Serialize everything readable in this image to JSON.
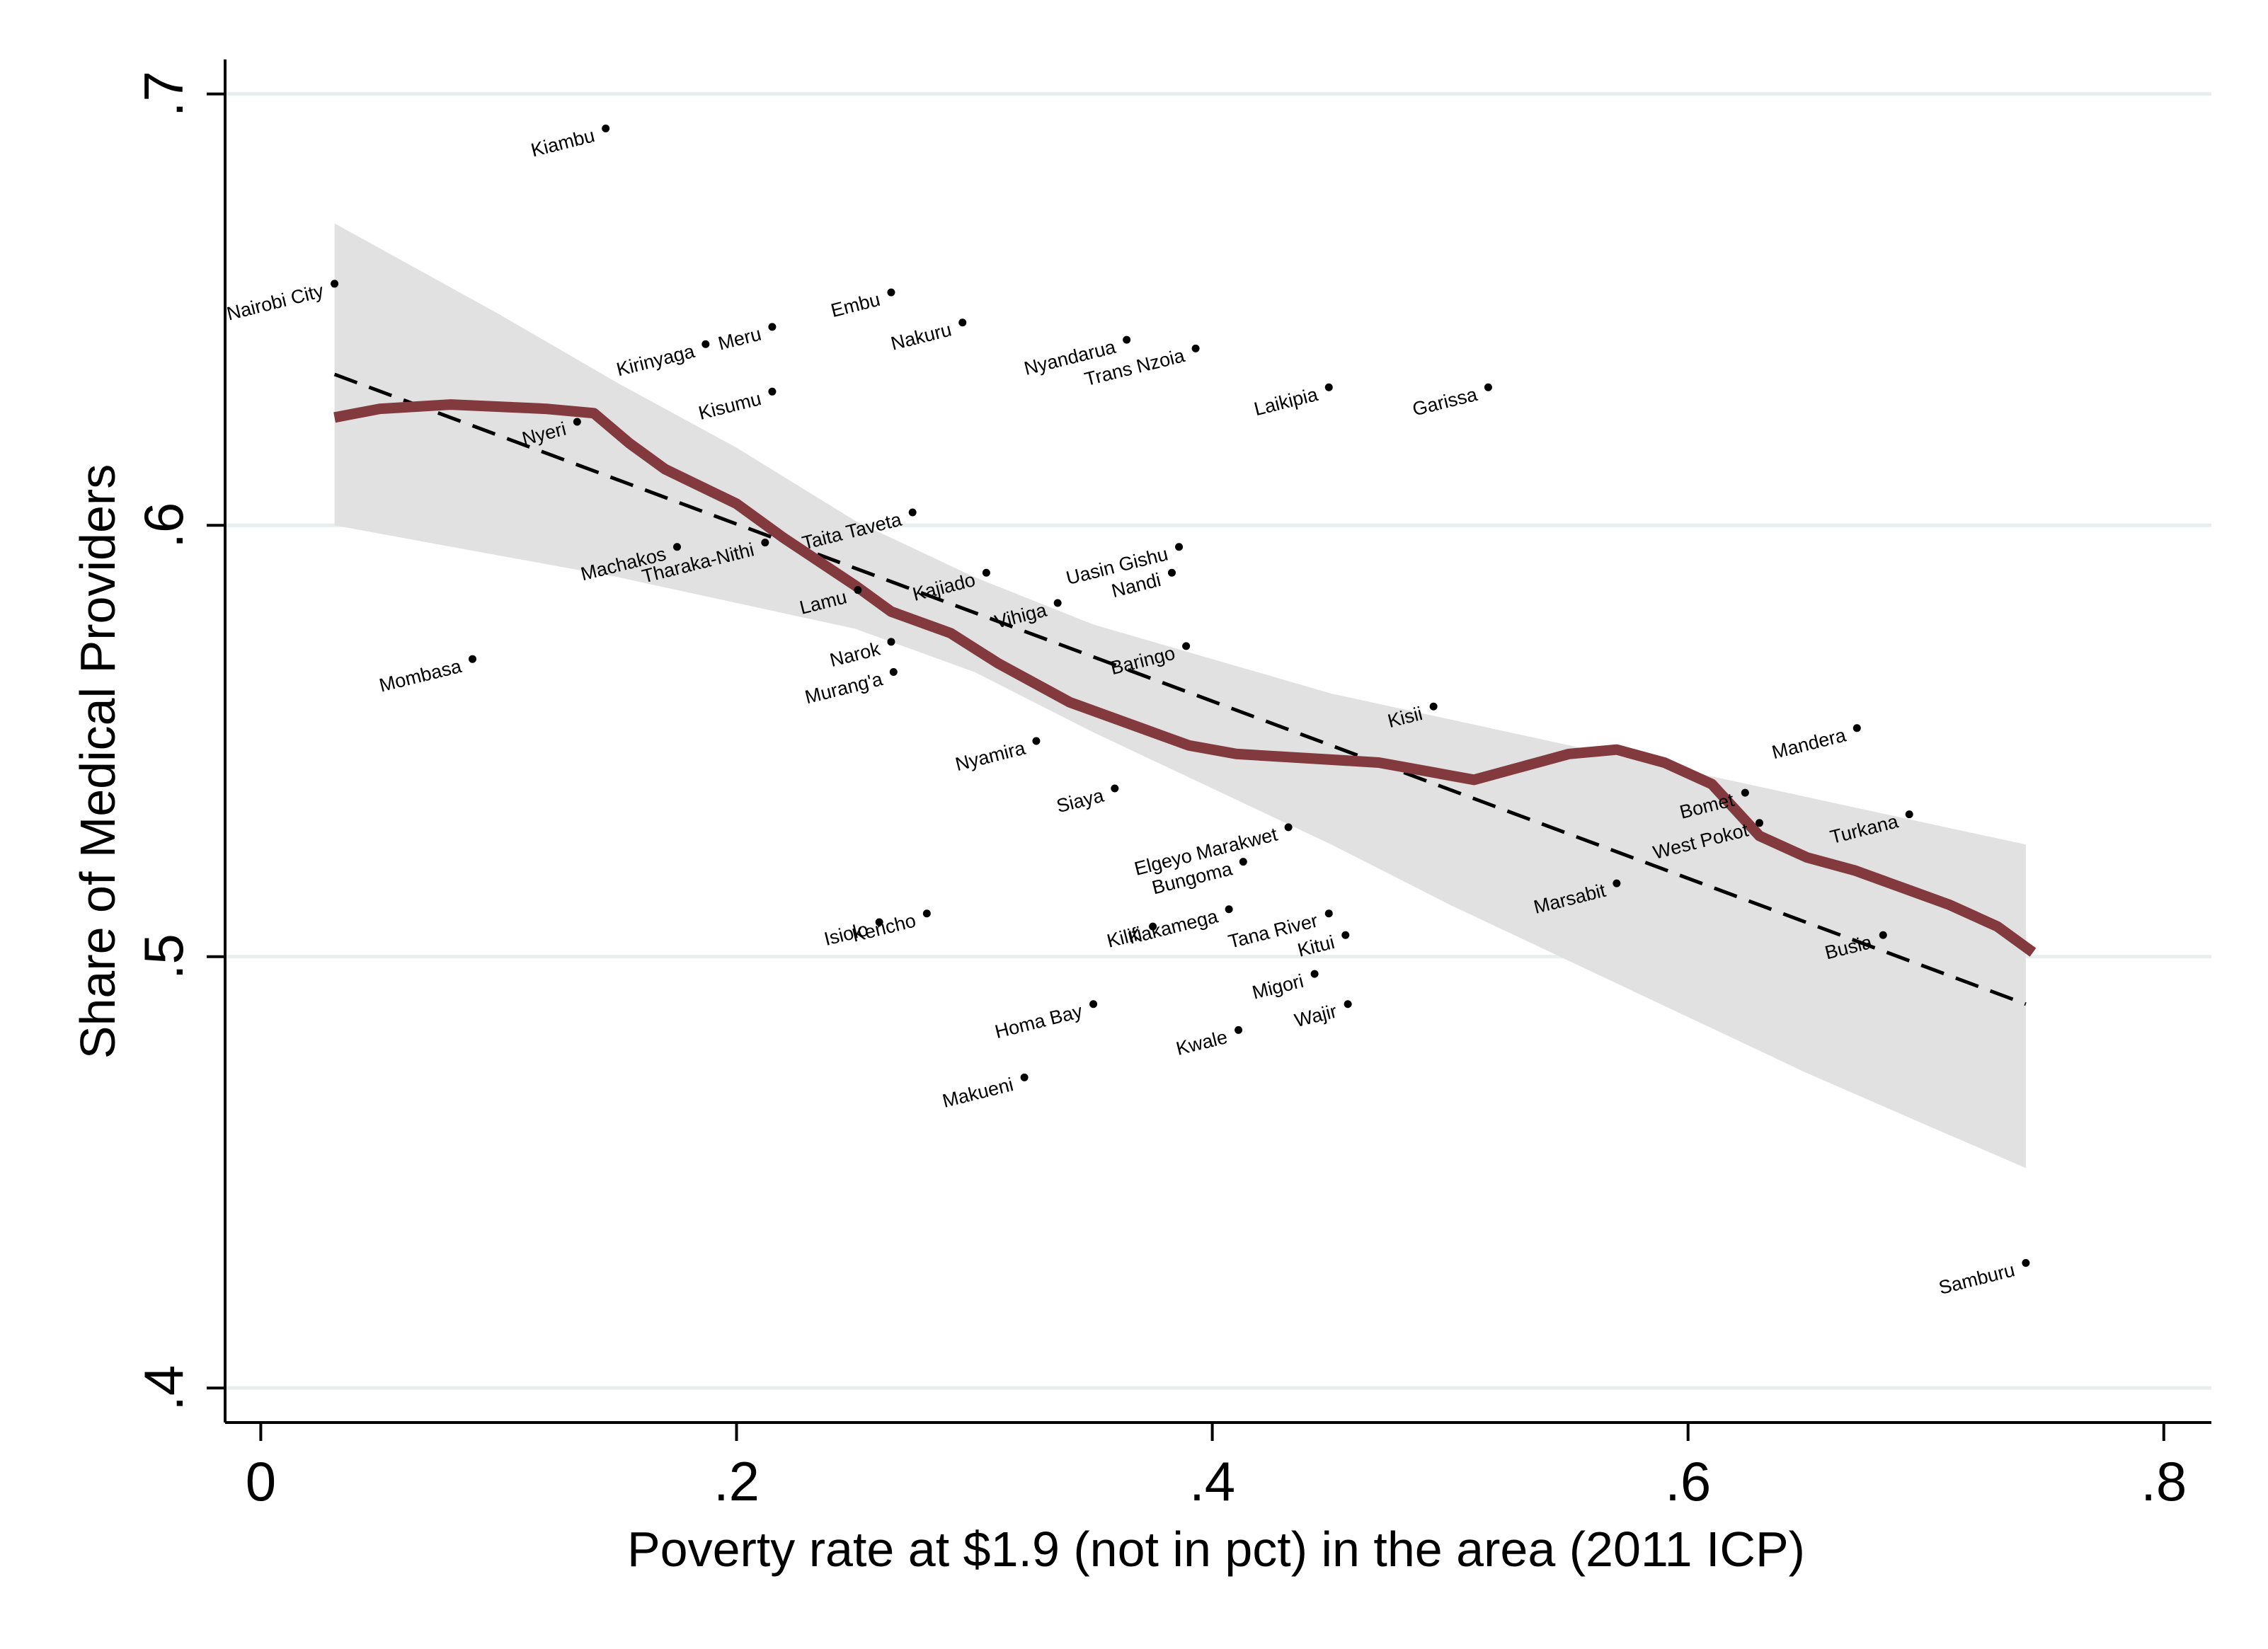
{
  "chart_data": {
    "type": "scatter",
    "xlabel": "Poverty rate at $1.9 (not in pct) in the area (2011 ICP)",
    "ylabel": "Share of Medical Providers",
    "xlim": [
      -0.015,
      0.82
    ],
    "ylim": [
      0.392,
      0.708
    ],
    "x_ticks": [
      {
        "value": 0,
        "label": "0"
      },
      {
        "value": 0.2,
        "label": ".2"
      },
      {
        "value": 0.4,
        "label": ".4"
      },
      {
        "value": 0.6,
        "label": ".6"
      },
      {
        "value": 0.8,
        "label": ".8"
      }
    ],
    "y_ticks": [
      {
        "value": 0.4,
        "label": ".4"
      },
      {
        "value": 0.5,
        "label": ".5"
      },
      {
        "value": 0.6,
        "label": ".6"
      },
      {
        "value": 0.7,
        "label": ".7"
      }
    ],
    "grid": true,
    "colors": {
      "smoother": "#823a3e",
      "fit_line": "#000000",
      "ci_band": "#e1e1e1",
      "grid": "#e8eeee",
      "point": "#000000"
    },
    "points": [
      {
        "name": "Kiambu",
        "x": 0.145,
        "y": 0.692
      },
      {
        "name": "Nairobi City",
        "x": 0.031,
        "y": 0.656
      },
      {
        "name": "Embu",
        "x": 0.265,
        "y": 0.654
      },
      {
        "name": "Nakuru",
        "x": 0.295,
        "y": 0.647
      },
      {
        "name": "Meru",
        "x": 0.215,
        "y": 0.646
      },
      {
        "name": "Kirinyaga",
        "x": 0.187,
        "y": 0.642
      },
      {
        "name": "Nyandarua",
        "x": 0.364,
        "y": 0.643
      },
      {
        "name": "Trans Nzoia",
        "x": 0.393,
        "y": 0.641
      },
      {
        "name": "Laikipia",
        "x": 0.449,
        "y": 0.632
      },
      {
        "name": "Garissa",
        "x": 0.516,
        "y": 0.632
      },
      {
        "name": "Kisumu",
        "x": 0.215,
        "y": 0.631
      },
      {
        "name": "Nyeri",
        "x": 0.133,
        "y": 0.624
      },
      {
        "name": "Taita Taveta",
        "x": 0.274,
        "y": 0.603
      },
      {
        "name": "Machakos",
        "x": 0.175,
        "y": 0.595
      },
      {
        "name": "Uasin Gishu",
        "x": 0.386,
        "y": 0.595
      },
      {
        "name": "Tharaka-Nithi",
        "x": 0.212,
        "y": 0.596
      },
      {
        "name": "Kajiado",
        "x": 0.305,
        "y": 0.589
      },
      {
        "name": "Nandi",
        "x": 0.383,
        "y": 0.589
      },
      {
        "name": "Lamu",
        "x": 0.251,
        "y": 0.585
      },
      {
        "name": "Vihiga",
        "x": 0.335,
        "y": 0.582
      },
      {
        "name": "Narok",
        "x": 0.265,
        "y": 0.573
      },
      {
        "name": "Baringo",
        "x": 0.389,
        "y": 0.572
      },
      {
        "name": "Mombasa",
        "x": 0.089,
        "y": 0.569
      },
      {
        "name": "Murang'a",
        "x": 0.266,
        "y": 0.566
      },
      {
        "name": "Kisii",
        "x": 0.493,
        "y": 0.558
      },
      {
        "name": "Mandera",
        "x": 0.671,
        "y": 0.553
      },
      {
        "name": "Nyamira",
        "x": 0.326,
        "y": 0.55
      },
      {
        "name": "Siaya",
        "x": 0.359,
        "y": 0.539
      },
      {
        "name": "Bomet",
        "x": 0.624,
        "y": 0.538
      },
      {
        "name": "Turkana",
        "x": 0.693,
        "y": 0.533
      },
      {
        "name": "West Pokot",
        "x": 0.63,
        "y": 0.531
      },
      {
        "name": "Elgeyo Marakwet",
        "x": 0.432,
        "y": 0.53
      },
      {
        "name": "Bungoma",
        "x": 0.413,
        "y": 0.522
      },
      {
        "name": "Marsabit",
        "x": 0.57,
        "y": 0.517
      },
      {
        "name": "Isiolo",
        "x": 0.26,
        "y": 0.508
      },
      {
        "name": "Kericho",
        "x": 0.28,
        "y": 0.51
      },
      {
        "name": "Kakamega",
        "x": 0.407,
        "y": 0.511
      },
      {
        "name": "Tana River",
        "x": 0.449,
        "y": 0.51
      },
      {
        "name": "Kilifi",
        "x": 0.375,
        "y": 0.507
      },
      {
        "name": "Kitui",
        "x": 0.456,
        "y": 0.505
      },
      {
        "name": "Busia",
        "x": 0.682,
        "y": 0.505
      },
      {
        "name": "Migori",
        "x": 0.443,
        "y": 0.496
      },
      {
        "name": "Homa Bay",
        "x": 0.35,
        "y": 0.489
      },
      {
        "name": "Wajir",
        "x": 0.457,
        "y": 0.489
      },
      {
        "name": "Kwale",
        "x": 0.411,
        "y": 0.483
      },
      {
        "name": "Makueni",
        "x": 0.321,
        "y": 0.472
      },
      {
        "name": "Samburu",
        "x": 0.742,
        "y": 0.429
      }
    ],
    "fit_line": {
      "x": [
        0.031,
        0.742
      ],
      "y": [
        0.635,
        0.489
      ]
    },
    "ci_band": {
      "x": [
        0.031,
        0.1,
        0.15,
        0.2,
        0.25,
        0.3,
        0.35,
        0.4,
        0.45,
        0.5,
        0.55,
        0.6,
        0.65,
        0.7,
        0.742
      ],
      "upper": [
        0.67,
        0.649,
        0.633,
        0.618,
        0.601,
        0.588,
        0.577,
        0.569,
        0.561,
        0.555,
        0.549,
        0.543,
        0.537,
        0.531,
        0.526
      ],
      "lower": [
        0.6,
        0.593,
        0.588,
        0.582,
        0.576,
        0.566,
        0.552,
        0.539,
        0.526,
        0.512,
        0.499,
        0.486,
        0.473,
        0.461,
        0.451
      ]
    },
    "smoother": {
      "x": [
        0.031,
        0.05,
        0.08,
        0.12,
        0.14,
        0.155,
        0.17,
        0.2,
        0.22,
        0.25,
        0.265,
        0.29,
        0.31,
        0.34,
        0.37,
        0.39,
        0.41,
        0.44,
        0.47,
        0.49,
        0.51,
        0.53,
        0.55,
        0.57,
        0.59,
        0.61,
        0.63,
        0.65,
        0.67,
        0.69,
        0.71,
        0.73,
        0.745
      ],
      "y": [
        0.625,
        0.627,
        0.628,
        0.627,
        0.626,
        0.619,
        0.613,
        0.605,
        0.597,
        0.586,
        0.58,
        0.575,
        0.568,
        0.559,
        0.553,
        0.549,
        0.547,
        0.546,
        0.545,
        0.543,
        0.541,
        0.544,
        0.547,
        0.548,
        0.545,
        0.54,
        0.528,
        0.523,
        0.52,
        0.516,
        0.512,
        0.507,
        0.501
      ]
    }
  }
}
